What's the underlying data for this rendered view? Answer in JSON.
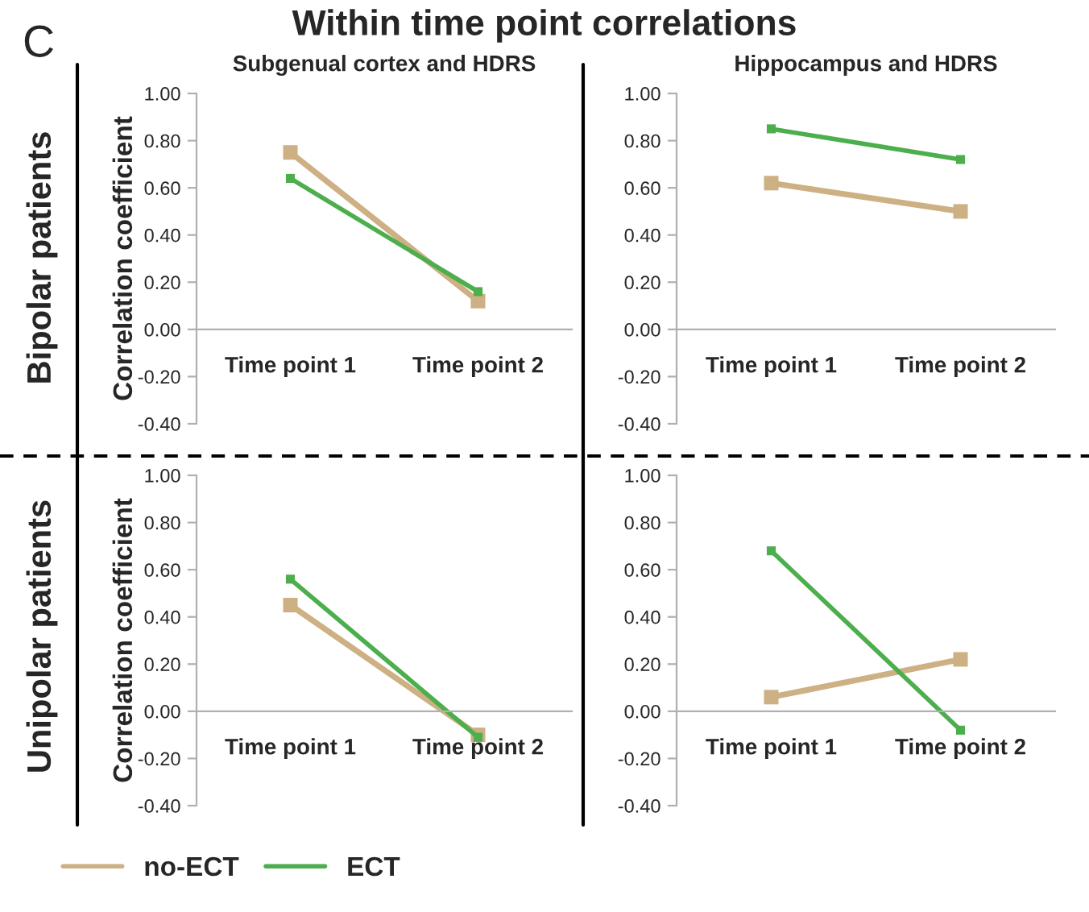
{
  "chart_data": [
    {
      "type": "line",
      "title": "Subgenual cortex and HDRS",
      "ylabel": "Correlation coefficient",
      "annotations": [
        "C",
        "Within time point correlations",
        "Bipolar patients"
      ],
      "categories": [
        "Time point 1",
        "Time point 2"
      ],
      "ylim": [
        -0.4,
        1.0
      ],
      "yticks": [
        {
          "value": -0.4,
          "label": "-0.40"
        },
        {
          "value": -0.2,
          "label": "-0.20"
        },
        {
          "value": 0,
          "label": "0.00"
        },
        {
          "value": 0.2,
          "label": "0.20"
        },
        {
          "value": 0.4,
          "label": "0.40"
        },
        {
          "value": 0.6,
          "label": "0.60"
        },
        {
          "value": 0.8,
          "label": "0.80"
        },
        {
          "value": 1.0,
          "label": "1.00"
        }
      ],
      "marker": "square",
      "line_style": "solid",
      "grid": false,
      "legend": false,
      "series": [
        {
          "color": "#cdb083",
          "values": [
            0.75,
            0.12
          ]
        },
        {
          "color": "#4cae4c",
          "values": [
            0.64,
            0.16
          ]
        }
      ]
    },
    {
      "type": "line",
      "title": "Hippocampus and HDRS",
      "categories": [
        "Time point 1",
        "Time point 2"
      ],
      "ylim": [
        -0.4,
        1.0
      ],
      "yticks": [
        {
          "value": -0.4,
          "label": "-0.40"
        },
        {
          "value": -0.2,
          "label": "-0.20"
        },
        {
          "value": 0,
          "label": "0.00"
        },
        {
          "value": 0.2,
          "label": "0.20"
        },
        {
          "value": 0.4,
          "label": "0.40"
        },
        {
          "value": 0.6,
          "label": "0.60"
        },
        {
          "value": 0.8,
          "label": "0.80"
        },
        {
          "value": 1.0,
          "label": "1.00"
        }
      ],
      "marker": "square",
      "line_style": "solid",
      "grid": false,
      "legend": false,
      "series": [
        {
          "color": "#cdb083",
          "values": [
            0.62,
            0.5
          ]
        },
        {
          "color": "#4cae4c",
          "values": [
            0.85,
            0.72
          ]
        }
      ]
    },
    {
      "type": "line",
      "ylabel": "Correlation coefficient",
      "annotations": [
        "Unipolar patients"
      ],
      "categories": [
        "Time point 1",
        "Time point 2"
      ],
      "ylim": [
        -0.4,
        1.0
      ],
      "yticks": [
        {
          "value": -0.4,
          "label": "-0.40"
        },
        {
          "value": -0.2,
          "label": "-0.20"
        },
        {
          "value": 0,
          "label": "0.00"
        },
        {
          "value": 0.2,
          "label": "0.20"
        },
        {
          "value": 0.4,
          "label": "0.40"
        },
        {
          "value": 0.6,
          "label": "0.60"
        },
        {
          "value": 0.8,
          "label": "0.80"
        },
        {
          "value": 1.0,
          "label": "1.00"
        }
      ],
      "marker": "square",
      "line_style": "solid",
      "grid": false,
      "legend": "bottom",
      "series": [
        {
          "name": "no-ECT",
          "color": "#cdb083",
          "values": [
            0.45,
            -0.1
          ]
        },
        {
          "name": "ECT",
          "color": "#4cae4c",
          "values": [
            0.56,
            -0.11
          ]
        }
      ]
    },
    {
      "type": "line",
      "categories": [
        "Time point 1",
        "Time point 2"
      ],
      "ylim": [
        -0.4,
        1.0
      ],
      "yticks": [
        {
          "value": -0.4,
          "label": "-0.40"
        },
        {
          "value": -0.2,
          "label": "-0.20"
        },
        {
          "value": 0,
          "label": "0.00"
        },
        {
          "value": 0.2,
          "label": "0.20"
        },
        {
          "value": 0.4,
          "label": "0.40"
        },
        {
          "value": 0.6,
          "label": "0.60"
        },
        {
          "value": 0.8,
          "label": "0.80"
        },
        {
          "value": 1.0,
          "label": "1.00"
        }
      ],
      "marker": "square",
      "line_style": "solid",
      "grid": false,
      "legend": false,
      "series": [
        {
          "color": "#cdb083",
          "values": [
            0.06,
            0.22
          ]
        },
        {
          "color": "#4cae4c",
          "values": [
            0.68,
            -0.08
          ]
        }
      ]
    }
  ]
}
